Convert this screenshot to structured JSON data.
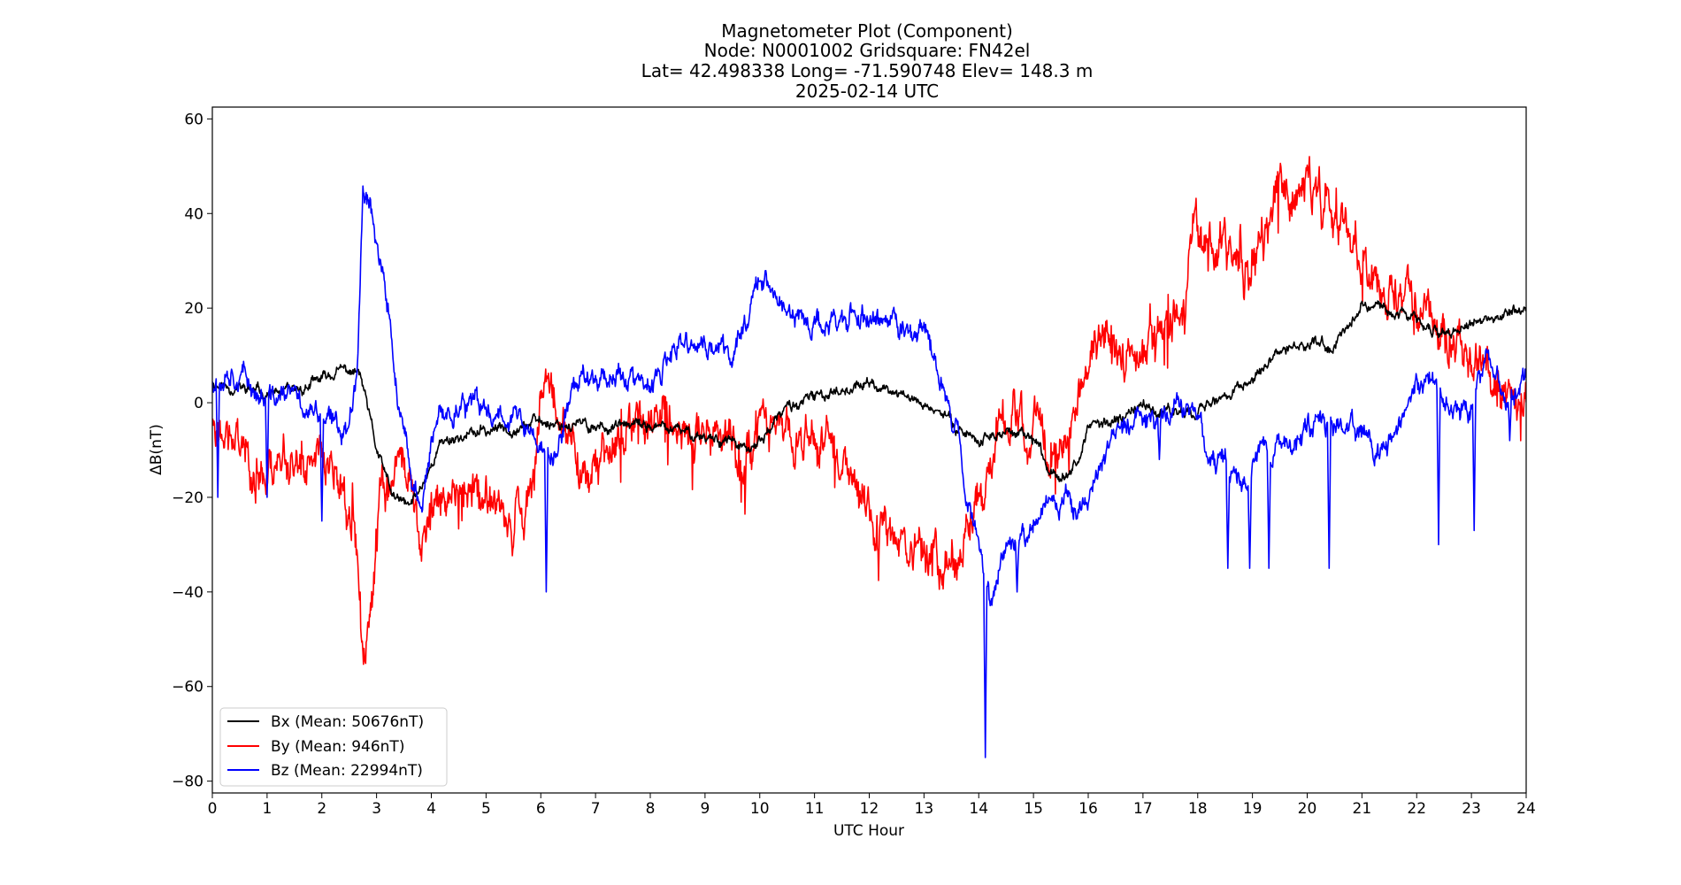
{
  "chart_data": {
    "type": "line",
    "title_lines": [
      "Magnetometer Plot (Component)",
      "Node:  N0001002     Gridsquare:  FN42el",
      "Lat= 42.498338    Long= -71.590748    Elev= 148.3 m",
      "2025-02-14  UTC"
    ],
    "xlabel": "UTC Hour",
    "ylabel": "ΔB(nT)",
    "xlim": [
      0,
      24
    ],
    "ylim": [
      -82.5,
      62.5
    ],
    "x_ticks": [
      0,
      1,
      2,
      3,
      4,
      5,
      6,
      7,
      8,
      9,
      10,
      11,
      12,
      13,
      14,
      15,
      16,
      17,
      18,
      19,
      20,
      21,
      22,
      23,
      24
    ],
    "x_tick_labels": [
      "0",
      "1",
      "2",
      "3",
      "4",
      "5",
      "6",
      "7",
      "8",
      "9",
      "10",
      "11",
      "12",
      "13",
      "14",
      "15",
      "16",
      "17",
      "18",
      "19",
      "20",
      "21",
      "22",
      "23",
      "24"
    ],
    "y_ticks": [
      60,
      40,
      20,
      0,
      -20,
      -40,
      -60,
      -80
    ],
    "y_tick_labels": [
      "60",
      "40",
      "20",
      "0",
      "−20",
      "−40",
      "−60",
      "−80"
    ],
    "grid": false,
    "legend_position": "lower-left",
    "series": [
      {
        "name": "Bx (Mean: 50676nT)",
        "color": "#000000",
        "noise": 1.3,
        "seed": 11,
        "x": [
          0,
          0.5,
          1,
          1.5,
          2,
          2.4,
          2.7,
          3.0,
          3.3,
          3.6,
          3.8,
          4.2,
          5,
          6,
          7,
          8,
          9,
          9.5,
          9.8,
          10,
          10.5,
          11,
          11.5,
          12,
          12.5,
          13,
          13.5,
          14,
          14.5,
          15,
          15.3,
          15.5,
          15.8,
          16,
          16.5,
          17,
          17.5,
          18,
          18.5,
          19,
          19.5,
          20,
          20.5,
          21,
          21.5,
          22,
          22.5,
          23,
          23.5,
          24
        ],
        "y": [
          4,
          3,
          2,
          2,
          5,
          7,
          6,
          -10,
          -20,
          -22,
          -18,
          -8,
          -6,
          -4,
          -5,
          -5,
          -7,
          -8,
          -11,
          -8,
          -1,
          1,
          3,
          4,
          2,
          0,
          -4,
          -8,
          -6,
          -8,
          -14,
          -15,
          -12,
          -6,
          -3,
          -1,
          -2,
          -1,
          1,
          5,
          10,
          13,
          12,
          21,
          20,
          17,
          15,
          16,
          18,
          20
        ]
      },
      {
        "name": "By (Mean: 946nT)",
        "color": "#ff0000",
        "noise": 5.5,
        "seed": 23,
        "x": [
          0,
          0.5,
          1,
          1.5,
          2,
          2.4,
          2.6,
          2.7,
          2.75,
          2.9,
          3.1,
          3.4,
          3.6,
          3.8,
          3.9,
          4.2,
          4.6,
          5,
          5.4,
          5.7,
          5.9,
          6.1,
          6.4,
          6.8,
          7.3,
          7.8,
          8.3,
          8.8,
          9.3,
          9.7,
          10,
          10.5,
          11,
          11.5,
          12,
          12.5,
          13,
          13.3,
          13.6,
          13.8,
          14,
          14.3,
          14.6,
          15,
          15.3,
          15.6,
          16,
          16.3,
          16.6,
          17,
          17.3,
          17.6,
          18,
          18.5,
          19,
          19.5,
          20,
          20.5,
          21,
          21.5,
          22,
          22.5,
          23,
          23.5,
          24
        ],
        "y": [
          -3,
          -8,
          -15,
          -10,
          -12,
          -18,
          -30,
          -45,
          -58,
          -45,
          -20,
          -12,
          -15,
          -30,
          -25,
          -18,
          -15,
          -22,
          -25,
          -28,
          -10,
          8,
          -5,
          -10,
          -10,
          -5,
          -3,
          -5,
          -5,
          -15,
          -3,
          -5,
          -10,
          -15,
          -22,
          -28,
          -32,
          -33,
          -35,
          -30,
          -20,
          -8,
          -3,
          -5,
          -12,
          -8,
          10,
          15,
          8,
          10,
          15,
          20,
          35,
          32,
          30,
          45,
          48,
          38,
          30,
          22,
          20,
          15,
          12,
          5,
          -2
        ]
      },
      {
        "name": "Bz (Mean: 22994nT)",
        "color": "#0000ff",
        "noise": 2.8,
        "seed": 37,
        "x": [
          0,
          0.3,
          0.6,
          1,
          1.4,
          1.8,
          2.2,
          2.5,
          2.65,
          2.75,
          2.85,
          3.0,
          3.2,
          3.4,
          3.6,
          3.8,
          4.1,
          4.5,
          5,
          5.5,
          6,
          6.3,
          6.6,
          7,
          7.5,
          8,
          8.3,
          8.6,
          9,
          9.5,
          9.8,
          10,
          10.3,
          10.6,
          11,
          11.5,
          12,
          12.5,
          13,
          13.3,
          13.6,
          13.8,
          14,
          14.2,
          14.5,
          14.8,
          15.2,
          15.6,
          16,
          16.4,
          16.8,
          17.2,
          17.6,
          17.9,
          18.2,
          18.5,
          18.8,
          19.2,
          19.6,
          20,
          20.4,
          20.8,
          21.2,
          21.6,
          22,
          22.3,
          22.6,
          23,
          23.3,
          23.6,
          24
        ],
        "y": [
          5,
          8,
          5,
          0,
          2,
          -2,
          -5,
          -5,
          10,
          45,
          45,
          35,
          20,
          0,
          -15,
          -22,
          -5,
          0,
          -2,
          -2,
          -10,
          -12,
          5,
          6,
          6,
          2,
          8,
          12,
          12,
          10,
          20,
          28,
          22,
          18,
          16,
          18,
          18,
          16,
          15,
          5,
          -5,
          -20,
          -30,
          -40,
          -30,
          -28,
          -22,
          -22,
          -20,
          -8,
          -4,
          -3,
          -2,
          0,
          -10,
          -12,
          -18,
          -8,
          -10,
          -5,
          -3,
          -5,
          -10,
          -8,
          2,
          5,
          0,
          -3,
          12,
          0,
          5
        ],
        "spikes": [
          [
            0.1,
            -20
          ],
          [
            1.0,
            -20
          ],
          [
            2.0,
            -25
          ],
          [
            3.8,
            -22
          ],
          [
            6.1,
            -40
          ],
          [
            14.12,
            -75
          ],
          [
            14.7,
            -40
          ],
          [
            17.3,
            -12
          ],
          [
            18.55,
            -35
          ],
          [
            18.95,
            -35
          ],
          [
            19.3,
            -35
          ],
          [
            20.4,
            -35
          ],
          [
            22.4,
            -30
          ],
          [
            23.05,
            -27
          ],
          [
            23.7,
            -8
          ]
        ]
      }
    ]
  }
}
